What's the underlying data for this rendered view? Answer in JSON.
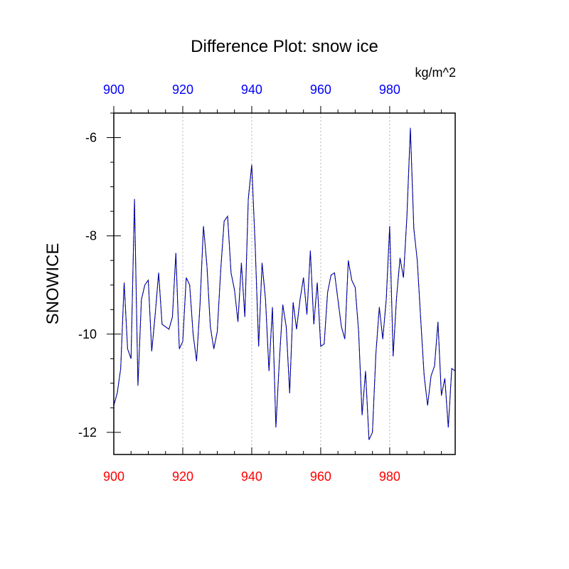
{
  "chart_data": {
    "type": "line",
    "title": "Difference Plot: snow ice",
    "units": "kg/m^2",
    "ylabel": "SNOWICE",
    "xlim": [
      900,
      999
    ],
    "ylim": [
      -12.45,
      -5.5
    ],
    "bottom_axis": {
      "ticks": [
        900,
        920,
        940,
        960,
        980
      ],
      "labels": [
        "900",
        "920",
        "940",
        "960",
        "980"
      ],
      "color": "#ff0000"
    },
    "top_axis": {
      "ticks": [
        900,
        920,
        940,
        960,
        980
      ],
      "labels": [
        "900",
        "920",
        "940",
        "960",
        "980"
      ],
      "color": "#0000ff"
    },
    "y_ticks": [
      -12,
      -10,
      -8,
      -6
    ],
    "y_tick_labels": [
      "-12",
      "-10",
      "-8",
      "-6"
    ],
    "grid": {
      "x": true,
      "y": false,
      "style": "dotted"
    },
    "x": [
      900,
      901,
      902,
      903,
      904,
      905,
      906,
      907,
      908,
      909,
      910,
      911,
      912,
      913,
      914,
      915,
      916,
      917,
      918,
      919,
      920,
      921,
      922,
      923,
      924,
      925,
      926,
      927,
      928,
      929,
      930,
      931,
      932,
      933,
      934,
      935,
      936,
      937,
      938,
      939,
      940,
      941,
      942,
      943,
      944,
      945,
      946,
      947,
      948,
      949,
      950,
      951,
      952,
      953,
      954,
      955,
      956,
      957,
      958,
      959,
      960,
      961,
      962,
      963,
      964,
      965,
      966,
      967,
      968,
      969,
      970,
      971,
      972,
      973,
      974,
      975,
      976,
      977,
      978,
      979,
      980,
      981,
      982,
      983,
      984,
      985,
      986,
      987,
      988,
      989,
      990,
      991,
      992,
      993,
      994,
      995,
      996,
      997,
      998,
      999
    ],
    "series": [
      {
        "color": "#000000",
        "style": "solid",
        "values": [
          -11.45,
          -11.2,
          -10.7,
          -8.95,
          -10.3,
          -10.5,
          -7.25,
          -11.05,
          -9.3,
          -9.0,
          -8.9,
          -10.35,
          -9.6,
          -8.75,
          -9.8,
          -9.85,
          -9.9,
          -9.65,
          -8.35,
          -10.3,
          -10.15,
          -8.85,
          -9.0,
          -10.0,
          -10.55,
          -9.4,
          -7.8,
          -8.6,
          -9.85,
          -10.3,
          -9.95,
          -8.7,
          -7.7,
          -7.6,
          -8.75,
          -9.1,
          -9.75,
          -8.55,
          -9.65,
          -7.25,
          -6.55,
          -8.2,
          -10.25,
          -8.55,
          -9.3,
          -10.75,
          -9.45,
          -11.9,
          -10.55,
          -9.4,
          -9.85,
          -11.2,
          -9.35,
          -9.9,
          -9.3,
          -8.85,
          -9.6,
          -8.3,
          -9.8,
          -8.95,
          -10.25,
          -10.2,
          -9.15,
          -8.8,
          -8.75,
          -9.3,
          -9.85,
          -10.1,
          -8.5,
          -8.9,
          -9.05,
          -9.95,
          -11.65,
          -10.75,
          -12.15,
          -12.0,
          -10.4,
          -9.45,
          -10.1,
          -9.3,
          -7.8,
          -10.45,
          -9.25,
          -8.45,
          -8.85,
          -7.6,
          -5.8,
          -7.85,
          -8.5,
          -9.7,
          -10.85,
          -11.45,
          -10.85,
          -10.65,
          -9.75,
          -11.25,
          -10.9,
          -11.9,
          -10.7,
          -10.75
        ]
      },
      {
        "color": "#0000ff",
        "style": "dashed",
        "values": [
          -11.45,
          -11.2,
          -10.7,
          -8.95,
          -10.3,
          -10.5,
          -7.25,
          -11.05,
          -9.3,
          -9.0,
          -8.9,
          -10.35,
          -9.6,
          -8.75,
          -9.8,
          -9.85,
          -9.9,
          -9.65,
          -8.35,
          -10.3,
          -10.15,
          -8.85,
          -9.0,
          -10.0,
          -10.55,
          -9.4,
          -7.8,
          -8.6,
          -9.85,
          -10.3,
          -9.95,
          -8.7,
          -7.7,
          -7.6,
          -8.75,
          -9.1,
          -9.75,
          -8.55,
          -9.65,
          -7.25,
          -6.55,
          -8.2,
          -10.25,
          -8.55,
          -9.3,
          -10.75,
          -9.45,
          -11.9,
          -10.55,
          -9.4,
          -9.85,
          -11.2,
          -9.35,
          -9.9,
          -9.3,
          -8.85,
          -9.6,
          -8.3,
          -9.8,
          -8.95,
          -10.25,
          -10.2,
          -9.15,
          -8.8,
          -8.75,
          -9.3,
          -9.85,
          -10.1,
          -8.5,
          -8.9,
          -9.05,
          -9.95,
          -11.65,
          -10.75,
          -12.15,
          -12.0,
          -10.4,
          -9.45,
          -10.1,
          -9.3,
          -7.8,
          -10.45,
          -9.25,
          -8.45,
          -8.85,
          -7.6,
          -5.8,
          -7.85,
          -8.5,
          -9.7,
          -10.85,
          -11.45,
          -10.85,
          -10.65,
          -9.75,
          -11.25,
          -10.9,
          -11.9,
          -10.7,
          -10.75
        ]
      }
    ]
  }
}
